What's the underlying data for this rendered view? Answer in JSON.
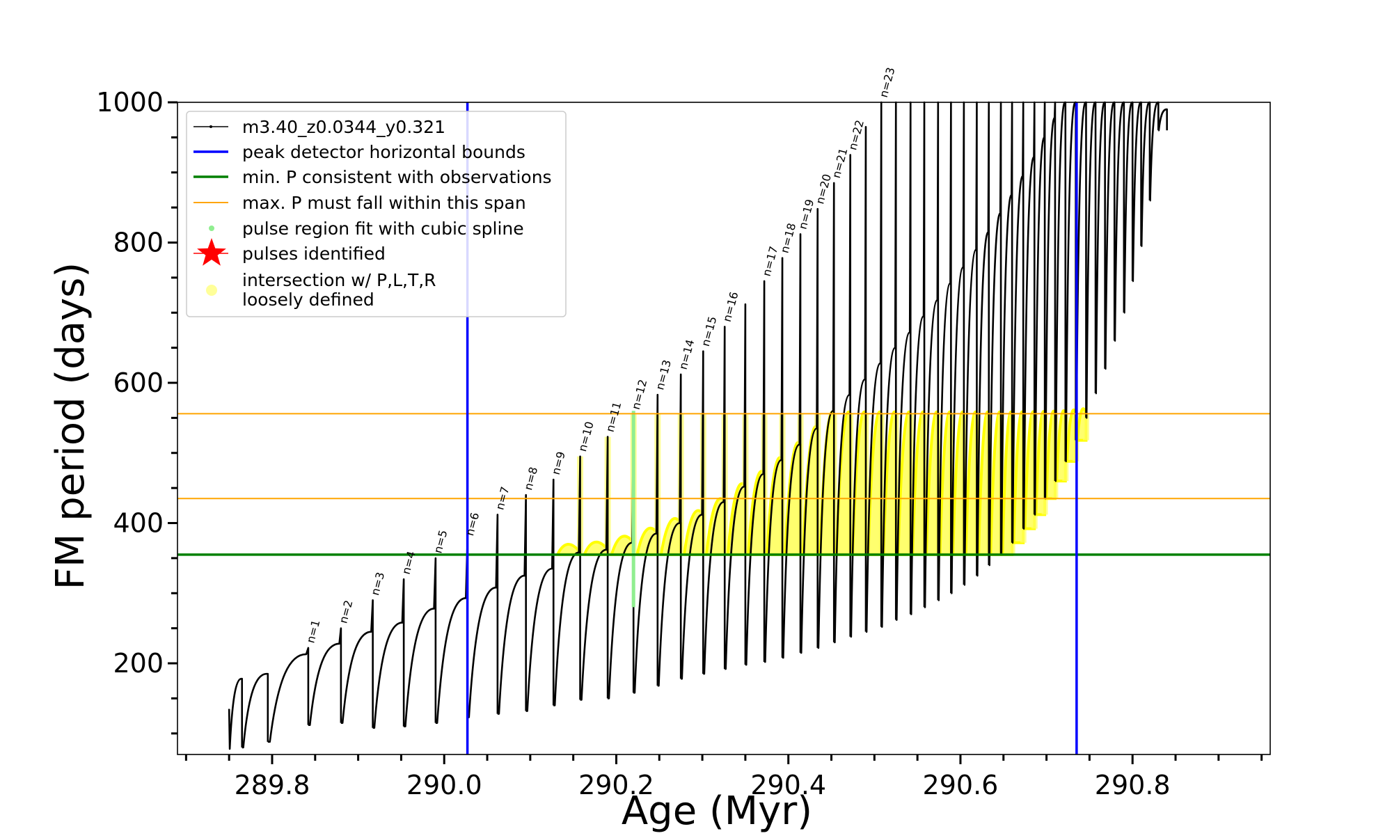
{
  "chart_data": {
    "type": "line",
    "title": "",
    "xlabel": "Age (Myr)",
    "ylabel": "FM period (days)",
    "xlim": [
      289.69,
      290.96
    ],
    "ylim": [
      70,
      1000
    ],
    "x_ticks": [
      289.8,
      290.0,
      290.2,
      290.4,
      290.6,
      290.8
    ],
    "x_tick_labels": [
      "289.8",
      "290.0",
      "290.2",
      "290.4",
      "290.6",
      "290.8"
    ],
    "y_ticks": [
      200,
      400,
      600,
      800,
      1000
    ],
    "y_tick_labels": [
      "200",
      "400",
      "600",
      "800",
      "1000"
    ],
    "grid": false,
    "legend_position": "upper-left",
    "legend": [
      {
        "label": "m3.40_z0.0344_y0.321",
        "kind": "line-dots",
        "color": "#000000"
      },
      {
        "label": "peak detector horizontal bounds",
        "kind": "line",
        "color": "#0000ff"
      },
      {
        "label": "min. P consistent with observations",
        "kind": "line",
        "color": "#008000"
      },
      {
        "label": "max. P must fall within this span",
        "kind": "thin-line",
        "color": "#ffa500"
      },
      {
        "label": "pulse region fit with cubic spline",
        "kind": "dot",
        "color": "#90ee90"
      },
      {
        "label": "pulses identified",
        "kind": "star",
        "color": "#ff0000"
      },
      {
        "label": "intersection w/ P,L,T,R\nloosely defined",
        "kind": "circle",
        "color": "#ffff99"
      }
    ],
    "vertical_lines": [
      {
        "x": 290.027,
        "color": "#0000ff",
        "name": "peak detector horizontal bounds"
      },
      {
        "x": 290.735,
        "color": "#0000ff",
        "name": "peak detector horizontal bounds"
      }
    ],
    "horizontal_lines": [
      {
        "y": 355,
        "color": "#008000",
        "name": "min. P consistent with observations"
      },
      {
        "y": 435,
        "color": "#ffa500",
        "name": "max. P must fall within this span"
      },
      {
        "y": 556,
        "color": "#ffa500",
        "name": "max. P must fall within this span"
      }
    ],
    "series_name": "m3.40_z0.0344_y0.321",
    "pulse_age_start": 289.75,
    "pulses": [
      {
        "end_age": 289.765,
        "trough": 78,
        "peak_before_spike": 178,
        "spike_top": 178,
        "label": ""
      },
      {
        "end_age": 289.795,
        "trough": 80,
        "peak_before_spike": 185,
        "spike_top": 185,
        "label": ""
      },
      {
        "end_age": 289.842,
        "trough": 88,
        "peak_before_spike": 213,
        "spike_top": 222,
        "label": "n=1"
      },
      {
        "end_age": 289.88,
        "trough": 112,
        "peak_before_spike": 228,
        "spike_top": 250,
        "label": "n=2"
      },
      {
        "end_age": 289.917,
        "trough": 115,
        "peak_before_spike": 245,
        "spike_top": 290,
        "label": "n=3"
      },
      {
        "end_age": 289.953,
        "trough": 108,
        "peak_before_spike": 258,
        "spike_top": 320,
        "label": "n=4"
      },
      {
        "end_age": 289.99,
        "trough": 110,
        "peak_before_spike": 278,
        "spike_top": 350,
        "label": "n=5"
      },
      {
        "end_age": 290.027,
        "trough": 115,
        "peak_before_spike": 293,
        "spike_top": 375,
        "label": "n=6"
      },
      {
        "end_age": 290.062,
        "trough": 123,
        "peak_before_spike": 308,
        "spike_top": 412,
        "label": "n=7"
      },
      {
        "end_age": 290.095,
        "trough": 128,
        "peak_before_spike": 325,
        "spike_top": 440,
        "label": "n=8"
      },
      {
        "end_age": 290.127,
        "trough": 132,
        "peak_before_spike": 335,
        "spike_top": 462,
        "label": "n=9"
      },
      {
        "end_age": 290.158,
        "trough": 140,
        "peak_before_spike": 358,
        "spike_top": 495,
        "label": "n=10"
      },
      {
        "end_age": 290.19,
        "trough": 148,
        "peak_before_spike": 362,
        "spike_top": 523,
        "label": "n=11"
      },
      {
        "end_age": 290.22,
        "trough": 150,
        "peak_before_spike": 372,
        "spike_top": 555,
        "label": "n=12"
      },
      {
        "end_age": 290.248,
        "trough": 158,
        "peak_before_spike": 385,
        "spike_top": 583,
        "label": "n=13"
      },
      {
        "end_age": 290.275,
        "trough": 168,
        "peak_before_spike": 400,
        "spike_top": 612,
        "label": "n=14"
      },
      {
        "end_age": 290.301,
        "trough": 178,
        "peak_before_spike": 412,
        "spike_top": 645,
        "label": "n=15"
      },
      {
        "end_age": 290.326,
        "trough": 185,
        "peak_before_spike": 430,
        "spike_top": 680,
        "label": "n=16"
      },
      {
        "end_age": 290.35,
        "trough": 192,
        "peak_before_spike": 452,
        "spike_top": 712,
        "label": ""
      },
      {
        "end_age": 290.372,
        "trough": 198,
        "peak_before_spike": 470,
        "spike_top": 745,
        "label": "n=17"
      },
      {
        "end_age": 290.393,
        "trough": 202,
        "peak_before_spike": 490,
        "spike_top": 778,
        "label": "n=18"
      },
      {
        "end_age": 290.414,
        "trough": 208,
        "peak_before_spike": 512,
        "spike_top": 812,
        "label": "n=19"
      },
      {
        "end_age": 290.434,
        "trough": 215,
        "peak_before_spike": 535,
        "spike_top": 848,
        "label": "n=20"
      },
      {
        "end_age": 290.453,
        "trough": 222,
        "peak_before_spike": 560,
        "spike_top": 885,
        "label": "n=21"
      },
      {
        "end_age": 290.472,
        "trough": 230,
        "peak_before_spike": 583,
        "spike_top": 925,
        "label": "n=22"
      },
      {
        "end_age": 290.49,
        "trough": 238,
        "peak_before_spike": 605,
        "spike_top": 965,
        "label": ""
      },
      {
        "end_age": 290.508,
        "trough": 245,
        "peak_before_spike": 628,
        "spike_top": 1000,
        "label": "n=23"
      },
      {
        "end_age": 290.525,
        "trough": 252,
        "peak_before_spike": 650,
        "spike_top": 1000,
        "label": ""
      },
      {
        "end_age": 290.542,
        "trough": 262,
        "peak_before_spike": 672,
        "spike_top": 1000,
        "label": ""
      },
      {
        "end_age": 290.558,
        "trough": 270,
        "peak_before_spike": 695,
        "spike_top": 1000,
        "label": ""
      },
      {
        "end_age": 290.574,
        "trough": 280,
        "peak_before_spike": 718,
        "spike_top": 1000,
        "label": ""
      },
      {
        "end_age": 290.589,
        "trough": 290,
        "peak_before_spike": 742,
        "spike_top": 1000,
        "label": ""
      },
      {
        "end_age": 290.604,
        "trough": 300,
        "peak_before_spike": 765,
        "spike_top": 1000,
        "label": ""
      },
      {
        "end_age": 290.619,
        "trough": 312,
        "peak_before_spike": 790,
        "spike_top": 1000,
        "label": ""
      },
      {
        "end_age": 290.633,
        "trough": 325,
        "peak_before_spike": 815,
        "spike_top": 1000,
        "label": ""
      },
      {
        "end_age": 290.647,
        "trough": 340,
        "peak_before_spike": 842,
        "spike_top": 1000,
        "label": ""
      },
      {
        "end_age": 290.66,
        "trough": 355,
        "peak_before_spike": 868,
        "spike_top": 1000,
        "label": ""
      },
      {
        "end_age": 290.673,
        "trough": 372,
        "peak_before_spike": 895,
        "spike_top": 1000,
        "label": ""
      },
      {
        "end_age": 290.686,
        "trough": 392,
        "peak_before_spike": 922,
        "spike_top": 1000,
        "label": ""
      },
      {
        "end_age": 290.698,
        "trough": 412,
        "peak_before_spike": 950,
        "spike_top": 1000,
        "label": ""
      },
      {
        "end_age": 290.71,
        "trough": 435,
        "peak_before_spike": 978,
        "spike_top": 1000,
        "label": ""
      },
      {
        "end_age": 290.722,
        "trough": 460,
        "peak_before_spike": 1000,
        "spike_top": 1000,
        "label": ""
      },
      {
        "end_age": 290.734,
        "trough": 488,
        "peak_before_spike": 1000,
        "spike_top": 1000,
        "label": ""
      },
      {
        "end_age": 290.746,
        "trough": 518,
        "peak_before_spike": 1000,
        "spike_top": 1000,
        "label": ""
      },
      {
        "end_age": 290.757,
        "trough": 550,
        "peak_before_spike": 1000,
        "spike_top": 1000,
        "label": ""
      },
      {
        "end_age": 290.768,
        "trough": 585,
        "peak_before_spike": 1000,
        "spike_top": 1000,
        "label": ""
      },
      {
        "end_age": 290.779,
        "trough": 620,
        "peak_before_spike": 1000,
        "spike_top": 1000,
        "label": ""
      },
      {
        "end_age": 290.79,
        "trough": 660,
        "peak_before_spike": 1000,
        "spike_top": 1000,
        "label": ""
      },
      {
        "end_age": 290.8,
        "trough": 700,
        "peak_before_spike": 1000,
        "spike_top": 1000,
        "label": ""
      },
      {
        "end_age": 290.81,
        "trough": 745,
        "peak_before_spike": 1000,
        "spike_top": 1000,
        "label": ""
      },
      {
        "end_age": 290.82,
        "trough": 795,
        "peak_before_spike": 1000,
        "spike_top": 1000,
        "label": ""
      },
      {
        "end_age": 290.83,
        "trough": 860,
        "peak_before_spike": 1000,
        "spike_top": 1000,
        "label": ""
      },
      {
        "end_age": 290.84,
        "trough": 960,
        "peak_before_spike": 990,
        "spike_top": 990,
        "label": ""
      }
    ],
    "spline_region_x": 290.22
  }
}
